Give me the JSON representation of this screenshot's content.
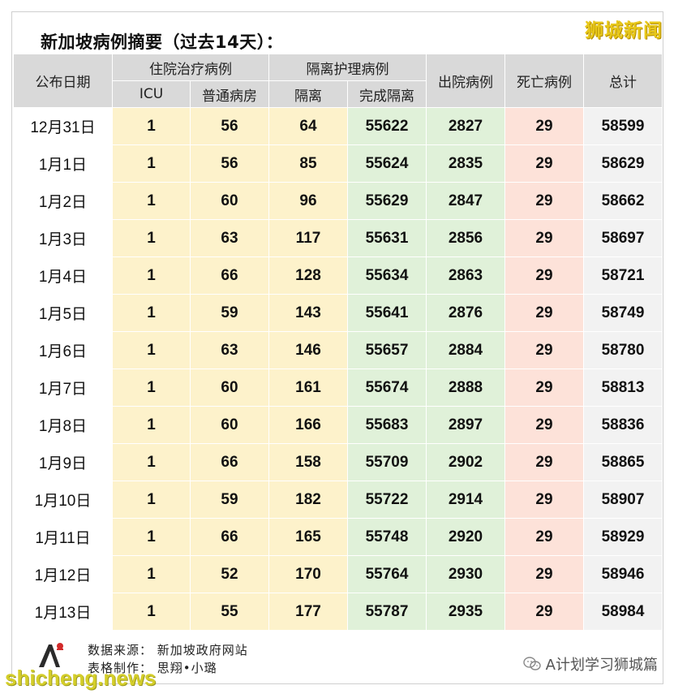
{
  "title": "新加坡病例摘要（过去14天）：",
  "brand": "狮城新闻",
  "header": {
    "date": "公布日期",
    "hospital_group": "住院治疗病例",
    "isolation_group": "隔离护理病例",
    "discharged": "出院病例",
    "deaths": "死亡病例",
    "total": "总计",
    "icu": "ICU",
    "general_ward": "普通病房",
    "isolation": "隔离",
    "completed_isolation": "完成隔离"
  },
  "rows": [
    {
      "date": "12月31日",
      "icu": "1",
      "ward": "56",
      "iso": "64",
      "done": "55622",
      "dis": "2827",
      "death": "29",
      "total": "58599"
    },
    {
      "date": "1月1日",
      "icu": "1",
      "ward": "56",
      "iso": "85",
      "done": "55624",
      "dis": "2835",
      "death": "29",
      "total": "58629"
    },
    {
      "date": "1月2日",
      "icu": "1",
      "ward": "60",
      "iso": "96",
      "done": "55629",
      "dis": "2847",
      "death": "29",
      "total": "58662"
    },
    {
      "date": "1月3日",
      "icu": "1",
      "ward": "63",
      "iso": "117",
      "done": "55631",
      "dis": "2856",
      "death": "29",
      "total": "58697"
    },
    {
      "date": "1月4日",
      "icu": "1",
      "ward": "66",
      "iso": "128",
      "done": "55634",
      "dis": "2863",
      "death": "29",
      "total": "58721"
    },
    {
      "date": "1月5日",
      "icu": "1",
      "ward": "59",
      "iso": "143",
      "done": "55641",
      "dis": "2876",
      "death": "29",
      "total": "58749"
    },
    {
      "date": "1月6日",
      "icu": "1",
      "ward": "63",
      "iso": "146",
      "done": "55657",
      "dis": "2884",
      "death": "29",
      "total": "58780"
    },
    {
      "date": "1月7日",
      "icu": "1",
      "ward": "60",
      "iso": "161",
      "done": "55674",
      "dis": "2888",
      "death": "29",
      "total": "58813"
    },
    {
      "date": "1月8日",
      "icu": "1",
      "ward": "60",
      "iso": "166",
      "done": "55683",
      "dis": "2897",
      "death": "29",
      "total": "58836"
    },
    {
      "date": "1月9日",
      "icu": "1",
      "ward": "66",
      "iso": "158",
      "done": "55709",
      "dis": "2902",
      "death": "29",
      "total": "58865"
    },
    {
      "date": "1月10日",
      "icu": "1",
      "ward": "59",
      "iso": "182",
      "done": "55722",
      "dis": "2914",
      "death": "29",
      "total": "58907"
    },
    {
      "date": "1月11日",
      "icu": "1",
      "ward": "66",
      "iso": "165",
      "done": "55748",
      "dis": "2920",
      "death": "29",
      "total": "58929"
    },
    {
      "date": "1月12日",
      "icu": "1",
      "ward": "52",
      "iso": "170",
      "done": "55764",
      "dis": "2930",
      "death": "29",
      "total": "58946"
    },
    {
      "date": "1月13日",
      "icu": "1",
      "ward": "55",
      "iso": "177",
      "done": "55787",
      "dis": "2935",
      "death": "29",
      "total": "58984"
    }
  ],
  "footer": {
    "source": "数据来源：  新加坡政府网站",
    "author": "表格制作：  思翔•小璐"
  },
  "wechat_account": "A计划学习狮城篇",
  "watermark": "shicheng.news",
  "colors": {
    "header_bg": "#d9d9d9",
    "hospital_col": "#fdf2cb",
    "isolation_done_col": "#e0f1d9",
    "discharged_col": "#e0f1d9",
    "deaths_col": "#fde2d9",
    "total_col": "#f2f2f2",
    "brand": "#e8c81a"
  }
}
